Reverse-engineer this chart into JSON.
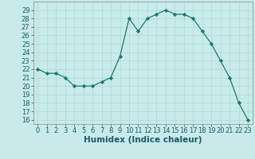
{
  "x": [
    0,
    1,
    2,
    3,
    4,
    5,
    6,
    7,
    8,
    9,
    10,
    11,
    12,
    13,
    14,
    15,
    16,
    17,
    18,
    19,
    20,
    21,
    22,
    23
  ],
  "y": [
    22,
    21.5,
    21.5,
    21,
    20,
    20,
    20,
    20.5,
    21,
    23.5,
    28,
    26.5,
    28,
    28.5,
    29,
    28.5,
    28.5,
    28,
    26.5,
    25,
    23,
    21,
    18,
    16
  ],
  "xlabel": "Humidex (Indice chaleur)",
  "xlim": [
    -0.5,
    23.5
  ],
  "ylim": [
    15.5,
    30
  ],
  "yticks": [
    16,
    17,
    18,
    19,
    20,
    21,
    22,
    23,
    24,
    25,
    26,
    27,
    28,
    29
  ],
  "xticks": [
    0,
    1,
    2,
    3,
    4,
    5,
    6,
    7,
    8,
    9,
    10,
    11,
    12,
    13,
    14,
    15,
    16,
    17,
    18,
    19,
    20,
    21,
    22,
    23
  ],
  "line_color": "#1a7a6a",
  "marker_color": "#1a7a6a",
  "bg_color": "#c8eaea",
  "grid_color": "#b0d8d8",
  "xlabel_color": "#1a5a6a",
  "xlabel_fontsize": 7.5,
  "tick_fontsize": 6.0,
  "ytick_color": "#1a5a6a",
  "xtick_color": "#1a5a6a",
  "spine_color": "#888888"
}
